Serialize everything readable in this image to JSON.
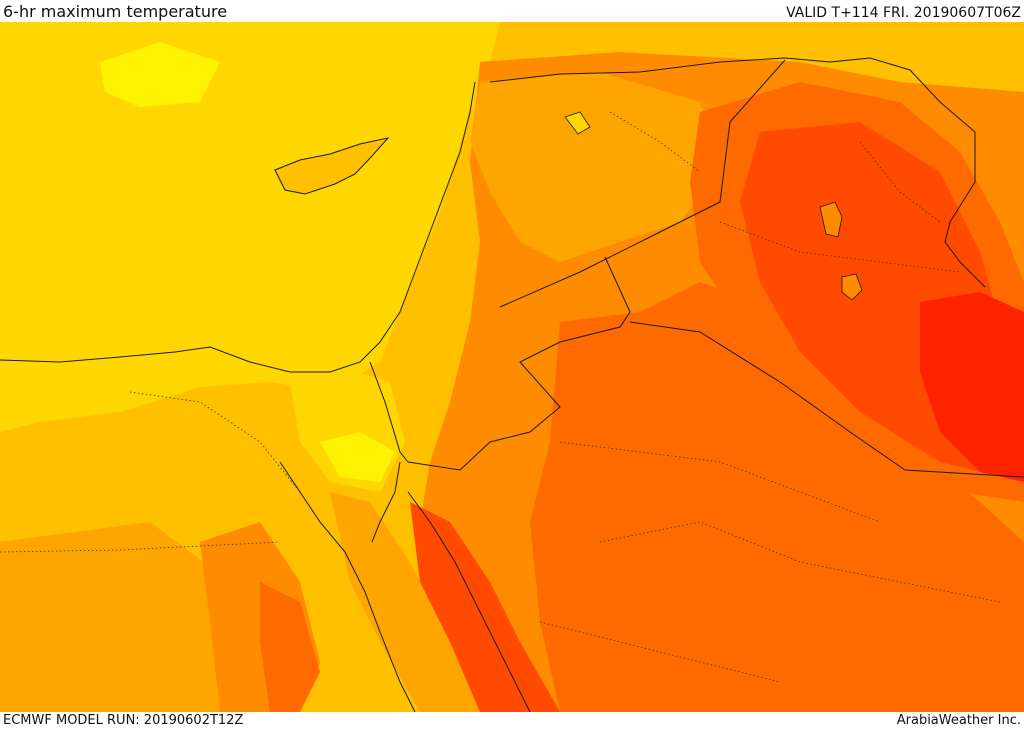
{
  "header": {
    "title": "6-hr maximum temperature",
    "valid": "VALID T+114 FRI. 20190607T06Z"
  },
  "footer": {
    "model_run": "ECMWF MODEL RUN: 20190602T12Z",
    "credit": "ArabiaWeather Inc."
  },
  "colors": {
    "band_yellow": "#ffd700",
    "band_bright_yellow": "#fff200",
    "band_gold": "#ffc000",
    "band_amber": "#ffa500",
    "band_orange": "#ff8c00",
    "band_dark_orange": "#ff6a00",
    "band_red_orange": "#ff4a00",
    "band_red": "#ff2200",
    "border_line": "#1a1a1a"
  }
}
